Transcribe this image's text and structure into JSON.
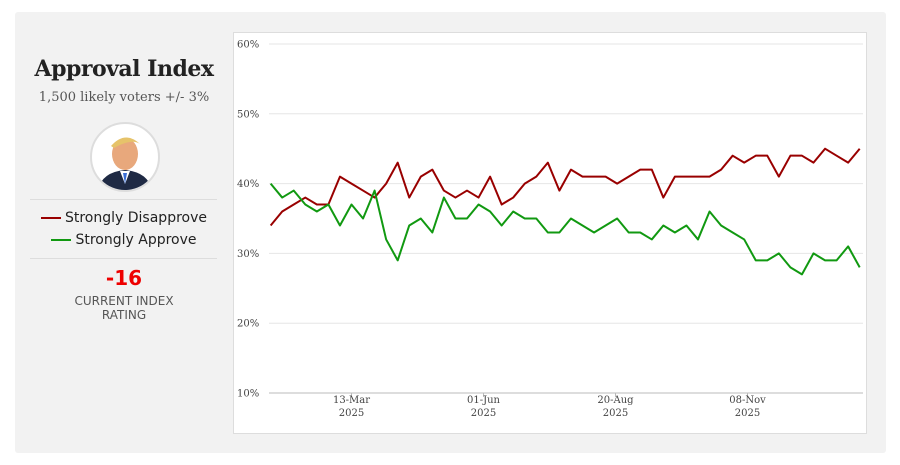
{
  "panel": {
    "title": "Approval Index",
    "subtitle": "1,500 likely voters +/- 3%",
    "index_value": -16,
    "index_label": "CURRENT INDEX RATING"
  },
  "chart_data": {
    "type": "line",
    "x": [
      "2025-01-23",
      "2025-01-30",
      "2025-02-06",
      "2025-02-13",
      "2025-02-20",
      "2025-02-27",
      "2025-03-06",
      "2025-03-13",
      "2025-03-20",
      "2025-03-27",
      "2025-04-03",
      "2025-04-10",
      "2025-04-17",
      "2025-04-24",
      "2025-05-01",
      "2025-05-08",
      "2025-05-15",
      "2025-05-22",
      "2025-05-29",
      "2025-06-05",
      "2025-06-12",
      "2025-06-19",
      "2025-06-26",
      "2025-07-03",
      "2025-07-10",
      "2025-07-17",
      "2025-07-24",
      "2025-07-31",
      "2025-08-07",
      "2025-08-14",
      "2025-08-21",
      "2025-08-28",
      "2025-09-04",
      "2025-09-11",
      "2025-09-18",
      "2025-09-25",
      "2025-10-02",
      "2025-10-09",
      "2025-10-16",
      "2025-10-23",
      "2025-10-30",
      "2025-11-06",
      "2025-11-13",
      "2025-11-20",
      "2025-11-27",
      "2025-12-04",
      "2025-12-11",
      "2025-12-18",
      "2025-12-25",
      "2026-01-01",
      "2026-01-08",
      "2026-01-15"
    ],
    "series": [
      {
        "name": "Strongly Disapprove",
        "color": "#990000",
        "values": [
          34,
          36,
          37,
          38,
          37,
          37,
          41,
          40,
          39,
          38,
          40,
          43,
          38,
          41,
          42,
          39,
          38,
          39,
          38,
          41,
          37,
          38,
          40,
          41,
          43,
          39,
          42,
          41,
          41,
          41,
          40,
          41,
          42,
          42,
          38,
          41,
          41,
          41,
          41,
          42,
          44,
          43,
          44,
          44,
          41,
          44,
          44,
          43,
          45,
          44,
          43,
          45
        ]
      },
      {
        "name": "Strongly Approve",
        "color": "#119911",
        "values": [
          40,
          38,
          39,
          37,
          36,
          37,
          34,
          37,
          35,
          39,
          32,
          29,
          34,
          35,
          33,
          38,
          35,
          35,
          37,
          36,
          34,
          36,
          35,
          35,
          33,
          33,
          35,
          34,
          33,
          34,
          35,
          33,
          33,
          32,
          34,
          33,
          34,
          32,
          36,
          34,
          33,
          32,
          29,
          29,
          30,
          28,
          27,
          30,
          29,
          29,
          31,
          28
        ]
      }
    ],
    "xlim": [
      "2025-01-22",
      "2026-01-17"
    ],
    "xticks": [
      {
        "value": "2025-03-13",
        "label": "13-Mar 2025"
      },
      {
        "value": "2025-06-01",
        "label": "01-Jun 2025"
      },
      {
        "value": "2025-08-20",
        "label": "20-Aug 2025"
      },
      {
        "value": "2025-11-08",
        "label": "08-Nov 2025"
      }
    ],
    "ylim": [
      10,
      60
    ],
    "yticks": [
      {
        "value": 10,
        "label": "10%"
      },
      {
        "value": 20,
        "label": "20%"
      },
      {
        "value": 30,
        "label": "30%"
      },
      {
        "value": 40,
        "label": "40%"
      },
      {
        "value": 50,
        "label": "50%"
      },
      {
        "value": 60,
        "label": "60%"
      }
    ],
    "grid": true
  }
}
